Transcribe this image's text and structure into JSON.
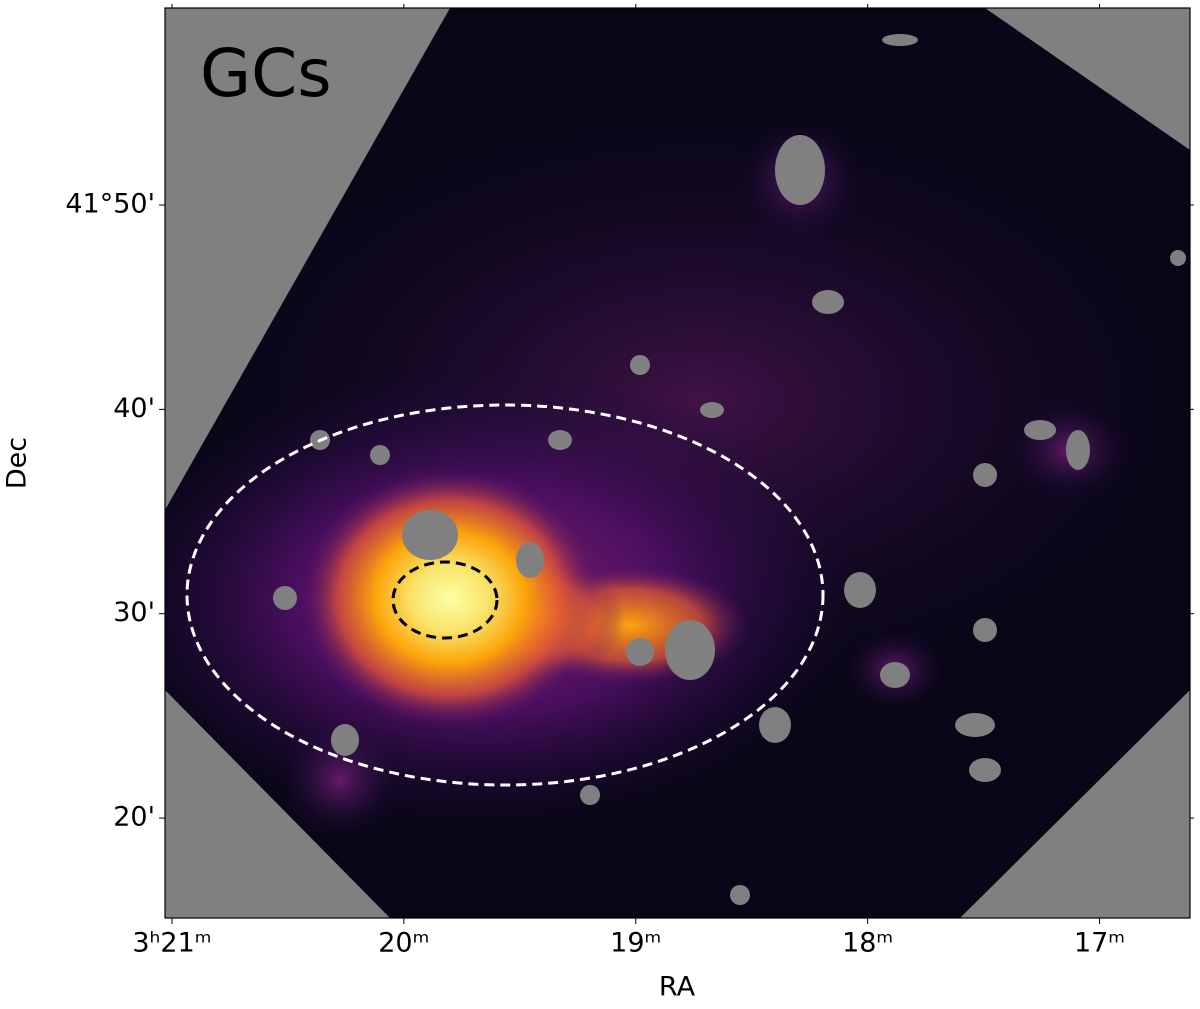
{
  "chart_data": {
    "type": "sky-map",
    "label": "GCs",
    "xlabel": "RA",
    "ylabel": "Dec",
    "xlim": [
      201.03,
      196.61
    ],
    "xticks": [
      {
        "value": 201,
        "label": "3ʰ21ᵐ"
      },
      {
        "value": 200,
        "label": "20ᵐ"
      },
      {
        "value": 199,
        "label": "19ᵐ"
      },
      {
        "value": 198,
        "label": "18ᵐ"
      },
      {
        "value": 197,
        "label": "17ᵐ"
      }
    ],
    "ylim": [
      15.11,
      59.64
    ],
    "yticks": [
      {
        "value": 50,
        "label": "41°50'"
      },
      {
        "value": 40,
        "label": "40'"
      },
      {
        "value": 30,
        "label": "30'"
      },
      {
        "value": 20,
        "label": "20'"
      }
    ]
  }
}
